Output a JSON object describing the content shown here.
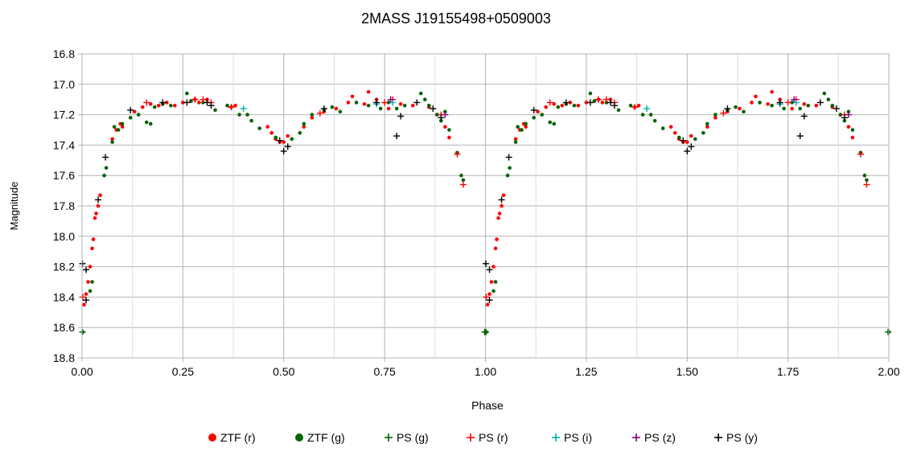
{
  "chart_data": {
    "type": "scatter",
    "title": "2MASS J19155498+0509003",
    "xlabel": "Phase",
    "ylabel": "Magnitude",
    "xlim": [
      0,
      2
    ],
    "ylim": [
      16.8,
      18.8
    ],
    "y_inverted": true,
    "x_ticks": [
      "0.00",
      "0.25",
      "0.50",
      "0.75",
      "1.00",
      "1.25",
      "1.50",
      "1.75",
      "2.00"
    ],
    "y_ticks": [
      "16.8",
      "17.0",
      "17.2",
      "17.4",
      "17.6",
      "17.8",
      "18.0",
      "18.2",
      "18.4",
      "18.6",
      "18.8"
    ],
    "grid": true,
    "legend_position": "bottom",
    "series": [
      {
        "name": "ZTF (r)",
        "marker": "dot",
        "color": "#ff0000",
        "points": [
          [
            0.005,
            18.45
          ],
          [
            0.01,
            18.38
          ],
          [
            0.015,
            18.3
          ],
          [
            0.02,
            18.2
          ],
          [
            0.025,
            18.08
          ],
          [
            0.028,
            18.02
          ],
          [
            0.032,
            17.88
          ],
          [
            0.035,
            17.85
          ],
          [
            0.04,
            17.8
          ],
          [
            0.045,
            17.73
          ],
          [
            0.075,
            17.36
          ],
          [
            0.085,
            17.3
          ],
          [
            0.095,
            17.26
          ],
          [
            0.1,
            17.28
          ],
          [
            0.13,
            17.18
          ],
          [
            0.15,
            17.15
          ],
          [
            0.17,
            17.13
          ],
          [
            0.19,
            17.14
          ],
          [
            0.21,
            17.12
          ],
          [
            0.23,
            17.14
          ],
          [
            0.25,
            17.12
          ],
          [
            0.27,
            17.11
          ],
          [
            0.28,
            17.1
          ],
          [
            0.29,
            17.12
          ],
          [
            0.31,
            17.1
          ],
          [
            0.37,
            17.15
          ],
          [
            0.38,
            17.14
          ],
          [
            0.46,
            17.28
          ],
          [
            0.47,
            17.32
          ],
          [
            0.48,
            17.36
          ],
          [
            0.49,
            17.38
          ],
          [
            0.5,
            17.38
          ],
          [
            0.51,
            17.34
          ],
          [
            0.55,
            17.28
          ],
          [
            0.57,
            17.22
          ],
          [
            0.6,
            17.18
          ],
          [
            0.63,
            17.16
          ],
          [
            0.66,
            17.12
          ],
          [
            0.67,
            17.08
          ],
          [
            0.7,
            17.13
          ],
          [
            0.71,
            17.05
          ],
          [
            0.73,
            17.1
          ],
          [
            0.76,
            17.16
          ],
          [
            0.79,
            17.13
          ],
          [
            0.82,
            17.14
          ],
          [
            0.86,
            17.15
          ],
          [
            0.88,
            17.2
          ],
          [
            0.9,
            17.28
          ],
          [
            0.91,
            17.35
          ],
          [
            0.93,
            17.45
          ]
        ]
      },
      {
        "name": "ZTF (g)",
        "marker": "dot",
        "color": "#006400",
        "points": [
          [
            0.002,
            18.63
          ],
          [
            0.02,
            18.36
          ],
          [
            0.025,
            18.3
          ],
          [
            0.055,
            17.6
          ],
          [
            0.06,
            17.55
          ],
          [
            0.075,
            17.38
          ],
          [
            0.08,
            17.28
          ],
          [
            0.09,
            17.3
          ],
          [
            0.1,
            17.26
          ],
          [
            0.12,
            17.22
          ],
          [
            0.14,
            17.2
          ],
          [
            0.16,
            17.25
          ],
          [
            0.17,
            17.26
          ],
          [
            0.18,
            17.15
          ],
          [
            0.2,
            17.13
          ],
          [
            0.22,
            17.14
          ],
          [
            0.26,
            17.06
          ],
          [
            0.27,
            17.11
          ],
          [
            0.3,
            17.12
          ],
          [
            0.33,
            17.17
          ],
          [
            0.36,
            17.14
          ],
          [
            0.39,
            17.2
          ],
          [
            0.41,
            17.2
          ],
          [
            0.42,
            17.24
          ],
          [
            0.44,
            17.29
          ],
          [
            0.48,
            17.35
          ],
          [
            0.52,
            17.36
          ],
          [
            0.54,
            17.32
          ],
          [
            0.55,
            17.26
          ],
          [
            0.57,
            17.2
          ],
          [
            0.6,
            17.17
          ],
          [
            0.62,
            17.15
          ],
          [
            0.64,
            17.18
          ],
          [
            0.68,
            17.12
          ],
          [
            0.71,
            17.14
          ],
          [
            0.74,
            17.16
          ],
          [
            0.76,
            17.12
          ],
          [
            0.78,
            17.16
          ],
          [
            0.8,
            17.14
          ],
          [
            0.84,
            17.06
          ],
          [
            0.85,
            17.1
          ],
          [
            0.86,
            17.14
          ],
          [
            0.88,
            17.2
          ],
          [
            0.89,
            17.24
          ],
          [
            0.9,
            17.18
          ],
          [
            0.91,
            17.3
          ],
          [
            0.93,
            17.45
          ],
          [
            0.94,
            17.6
          ],
          [
            0.945,
            17.63
          ],
          [
            1.0,
            18.63
          ]
        ]
      },
      {
        "name": "PS (g)",
        "marker": "plus",
        "color": "#006400",
        "points": [
          [
            0.001,
            18.63
          ],
          [
            0.998,
            18.63
          ]
        ]
      },
      {
        "name": "PS (r)",
        "marker": "plus",
        "color": "#ff0000",
        "points": [
          [
            0.002,
            18.4
          ],
          [
            0.16,
            17.12
          ],
          [
            0.28,
            17.1
          ],
          [
            0.3,
            17.1
          ],
          [
            0.32,
            17.12
          ],
          [
            0.37,
            17.15
          ],
          [
            0.59,
            17.19
          ],
          [
            0.75,
            17.12
          ],
          [
            0.77,
            17.1
          ],
          [
            0.89,
            17.2
          ],
          [
            0.93,
            17.46
          ],
          [
            0.945,
            17.66
          ]
        ]
      },
      {
        "name": "PS (i)",
        "marker": "plus",
        "color": "#00b0b0",
        "points": [
          [
            0.4,
            17.16
          ],
          [
            0.73,
            17.13
          ],
          [
            0.77,
            17.12
          ]
        ]
      },
      {
        "name": "PS (z)",
        "marker": "plus",
        "color": "#800080",
        "points": [
          [
            0.765,
            17.1
          ],
          [
            0.9,
            17.2
          ]
        ]
      },
      {
        "name": "PS (y)",
        "marker": "plus",
        "color": "#000000",
        "points": [
          [
            0.001,
            18.18
          ],
          [
            0.01,
            18.22
          ],
          [
            0.01,
            18.42
          ],
          [
            0.04,
            17.76
          ],
          [
            0.058,
            17.48
          ],
          [
            0.12,
            17.17
          ],
          [
            0.2,
            17.12
          ],
          [
            0.26,
            17.12
          ],
          [
            0.31,
            17.12
          ],
          [
            0.32,
            17.14
          ],
          [
            0.49,
            17.37
          ],
          [
            0.5,
            17.44
          ],
          [
            0.51,
            17.41
          ],
          [
            0.6,
            17.16
          ],
          [
            0.73,
            17.12
          ],
          [
            0.78,
            17.34
          ],
          [
            0.79,
            17.21
          ],
          [
            0.83,
            17.12
          ],
          [
            0.87,
            17.16
          ],
          [
            0.89,
            17.22
          ]
        ]
      }
    ]
  }
}
